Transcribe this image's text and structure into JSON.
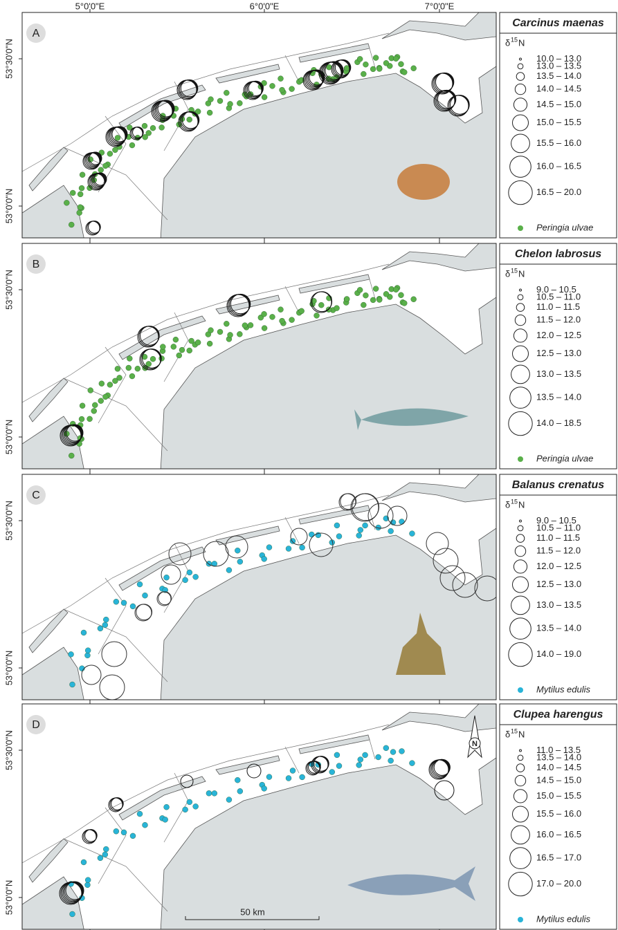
{
  "axis": {
    "longitudes": [
      "5°0'0\"E",
      "6°0'0\"E",
      "7°0'0\"E"
    ],
    "latitudes": [
      "53°30'0\"N",
      "53°0'0\"N"
    ]
  },
  "panels": [
    {
      "letter": "A",
      "species": "Carcinus maenas",
      "heading": {
        "symbol": "δ",
        "superscript": "15",
        "unit": "N"
      },
      "ranges": [
        "10.0 – 13.0",
        "13.0 – 13.5",
        "13.5 – 14.0",
        "14.0 – 14.5",
        "14.5 – 15.0",
        "15.0 – 15.5",
        "15.5 – 16.0",
        "16.0 – 16.5",
        "16.5 – 20.0"
      ],
      "prey": "Peringia ulvae"
    },
    {
      "letter": "B",
      "species": "Chelon labrosus",
      "heading": {
        "symbol": "δ",
        "superscript": "15",
        "unit": "N"
      },
      "ranges": [
        "9.0 – 10.5",
        "10.5 – 11.0",
        "11.0 – 11.5",
        "11.5 – 12.0",
        "12.0 – 12.5",
        "12.5 – 13.0",
        "13.0 – 13.5",
        "13.5 – 14.0",
        "14.0 – 18.5"
      ],
      "prey": "Peringia ulvae"
    },
    {
      "letter": "C",
      "species": "Balanus crenatus",
      "heading": {
        "symbol": "δ",
        "superscript": "15",
        "unit": "N"
      },
      "ranges": [
        "9.0 – 10.5",
        "10.5 – 11.0",
        "11.0 – 11.5",
        "11.5 – 12.0",
        "12.0 – 12.5",
        "12.5 – 13.0",
        "13.0 – 13.5",
        "13.5 – 14.0",
        "14.0 – 19.0"
      ],
      "prey": "Mytilus edulis"
    },
    {
      "letter": "D",
      "species": "Clupea harengus",
      "heading": {
        "symbol": "δ",
        "superscript": "15",
        "unit": "N"
      },
      "ranges": [
        "11.0 – 13.5",
        "13.5 – 14.0",
        "14.0 – 14.5",
        "14.5 – 15.0",
        "15.0 – 15.5",
        "15.5 – 16.0",
        "16.0 – 16.5",
        "16.5 – 17.0",
        "17.0 – 20.0"
      ],
      "prey": "Mytilus edulis"
    }
  ],
  "scale_bar": "50 km",
  "north": "N"
}
